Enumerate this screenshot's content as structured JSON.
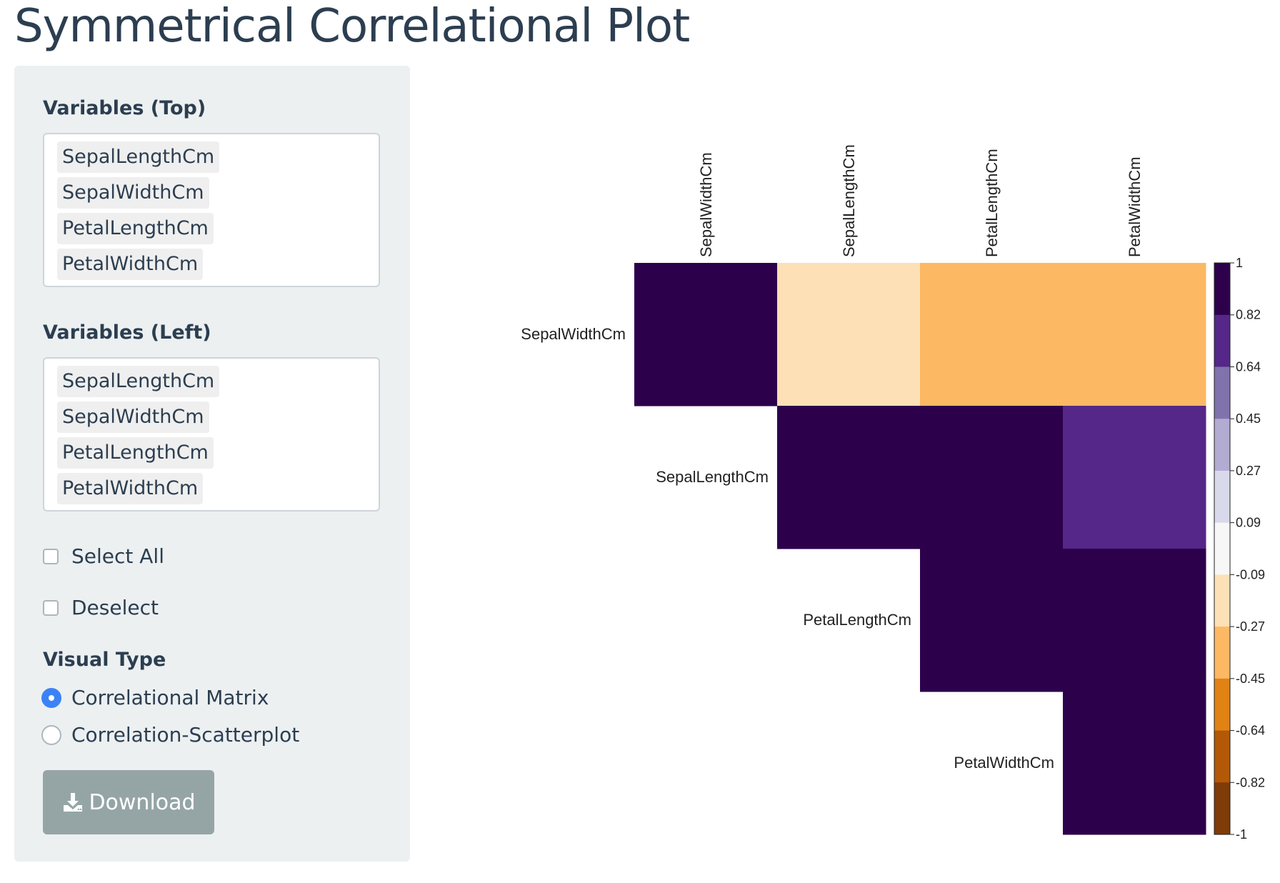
{
  "page": {
    "title": "Symmetrical Correlational Plot"
  },
  "sidebar": {
    "top_label": "Variables (Top)",
    "top_vars": [
      "SepalLengthCm",
      "SepalWidthCm",
      "PetalLengthCm",
      "PetalWidthCm"
    ],
    "left_label": "Variables (Left)",
    "left_vars": [
      "SepalLengthCm",
      "SepalWidthCm",
      "PetalLengthCm",
      "PetalWidthCm"
    ],
    "select_all_label": "Select All",
    "deselect_label": "Deselect",
    "visual_type_label": "Visual Type",
    "visual_options": [
      "Correlational Matrix",
      "Correlation-Scatterplot"
    ],
    "visual_selected": "Correlational Matrix",
    "download_label": "Download"
  },
  "colors": {
    "panel_bg": "#ecf0f1",
    "title": "#2c3e50",
    "button_bg": "#95a5a6",
    "radio_selected": "#3b82f6"
  },
  "chart_data": {
    "type": "heatmap",
    "title": "",
    "columns": [
      "SepalWidthCm",
      "SepalLengthCm",
      "PetalLengthCm",
      "PetalWidthCm"
    ],
    "rows": [
      "SepalWidthCm",
      "SepalLengthCm",
      "PetalLengthCm",
      "PetalWidthCm"
    ],
    "layout": "upper-triangle",
    "values": [
      [
        1.0,
        -0.11,
        -0.42,
        -0.36
      ],
      [
        null,
        1.0,
        0.87,
        0.82
      ],
      [
        null,
        null,
        1.0,
        0.96
      ],
      [
        null,
        null,
        null,
        1.0
      ]
    ],
    "legend": {
      "placement": "right",
      "ticks": [
        "1",
        "0.82",
        "0.64",
        "0.45",
        "0.27",
        "0.09",
        "-0.09",
        "-0.27",
        "-0.45",
        "-0.64",
        "-0.82",
        "-1"
      ],
      "range": [
        -1,
        1
      ],
      "bins": [
        -1,
        -0.82,
        -0.64,
        -0.45,
        -0.27,
        -0.09,
        0.09,
        0.27,
        0.45,
        0.64,
        0.82,
        1
      ],
      "colors": [
        "#7f3b08",
        "#b35806",
        "#e08214",
        "#fdb863",
        "#fee0b6",
        "#f7f7f7",
        "#d8daeb",
        "#b2abd2",
        "#8073ac",
        "#542788",
        "#2d004b"
      ]
    }
  }
}
